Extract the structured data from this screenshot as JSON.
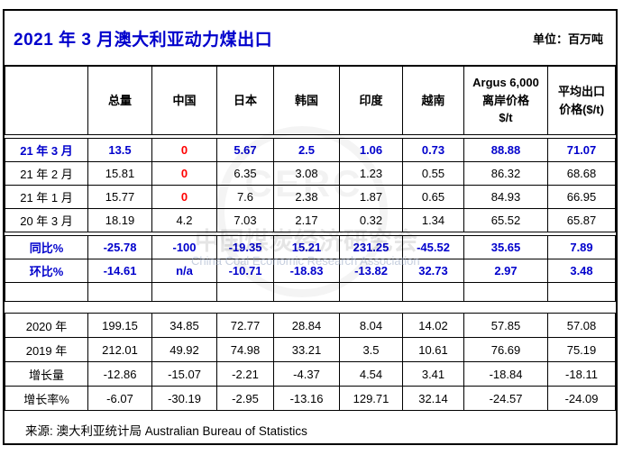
{
  "title": "2021 年 3 月澳大利亚动力煤出口",
  "unit_label": "单位：百万吨",
  "source": "来源: 澳大利亚统计局  Australian Bureau of Statistics",
  "watermark": {
    "seal": "CERC",
    "cn": "中国煤炭经济研究会",
    "en": "China Coal Economic Research Association"
  },
  "colors": {
    "accent_blue": "#0000CC",
    "negative_red": "#FF0000",
    "border": "#000000",
    "background": "#FFFFFF"
  },
  "chart_data": {
    "type": "table",
    "title": "2021 年 3 月澳大利亚动力煤出口",
    "unit": "百万吨",
    "source": "澳大利亚统计局 Australian Bureau of Statistics",
    "columns": [
      "",
      "总量",
      "中国",
      "日本",
      "韩国",
      "印度",
      "越南",
      "Argus 6,000\n离岸价格\n$/t",
      "平均出口\n价格($/t)"
    ],
    "sections": [
      {
        "name": "monthly",
        "rows": [
          {
            "label": "21 年 3 月",
            "style": "highlight",
            "values": [
              "13.5",
              "0",
              "5.67",
              "2.5",
              "1.06",
              "0.73",
              "88.88",
              "71.07"
            ],
            "red": [
              1
            ]
          },
          {
            "label": "21 年 2 月",
            "style": "normal",
            "values": [
              "15.81",
              "0",
              "6.35",
              "3.08",
              "1.23",
              "0.55",
              "86.32",
              "68.68"
            ],
            "red": [
              1
            ]
          },
          {
            "label": "21 年 1 月",
            "style": "normal",
            "values": [
              "15.77",
              "0",
              "7.6",
              "2.38",
              "1.87",
              "0.65",
              "84.93",
              "66.95"
            ],
            "red": [
              1
            ]
          },
          {
            "label": "20 年 3 月",
            "style": "normal",
            "values": [
              "18.19",
              "4.2",
              "7.03",
              "2.17",
              "0.32",
              "1.34",
              "65.52",
              "65.87"
            ],
            "red": []
          }
        ]
      },
      {
        "name": "comparison",
        "rows": [
          {
            "label": "同比%",
            "style": "highlight",
            "values": [
              "-25.78",
              "-100",
              "-19.35",
              "15.21",
              "231.25",
              "-45.52",
              "35.65",
              "7.89"
            ],
            "red": []
          },
          {
            "label": "环比%",
            "style": "highlight",
            "values": [
              "-14.61",
              "n/a",
              "-10.71",
              "-18.83",
              "-13.82",
              "32.73",
              "2.97",
              "3.48"
            ],
            "red": []
          },
          {
            "label": "",
            "style": "empty",
            "values": [
              "",
              "",
              "",
              "",
              "",
              "",
              "",
              ""
            ],
            "red": []
          }
        ]
      },
      {
        "name": "annual",
        "rows": [
          {
            "label": "2020 年",
            "style": "normal",
            "values": [
              "199.15",
              "34.85",
              "72.77",
              "28.84",
              "8.04",
              "14.02",
              "57.85",
              "57.08"
            ],
            "red": []
          },
          {
            "label": "2019 年",
            "style": "normal",
            "values": [
              "212.01",
              "49.92",
              "74.98",
              "33.21",
              "3.5",
              "10.61",
              "76.69",
              "75.19"
            ],
            "red": []
          },
          {
            "label": "增长量",
            "style": "normal",
            "values": [
              "-12.86",
              "-15.07",
              "-2.21",
              "-4.37",
              "4.54",
              "3.41",
              "-18.84",
              "-18.11"
            ],
            "red": []
          },
          {
            "label": "增长率%",
            "style": "normal",
            "values": [
              "-6.07",
              "-30.19",
              "-2.95",
              "-13.16",
              "129.71",
              "32.14",
              "-24.57",
              "-24.09"
            ],
            "red": []
          }
        ]
      }
    ]
  }
}
